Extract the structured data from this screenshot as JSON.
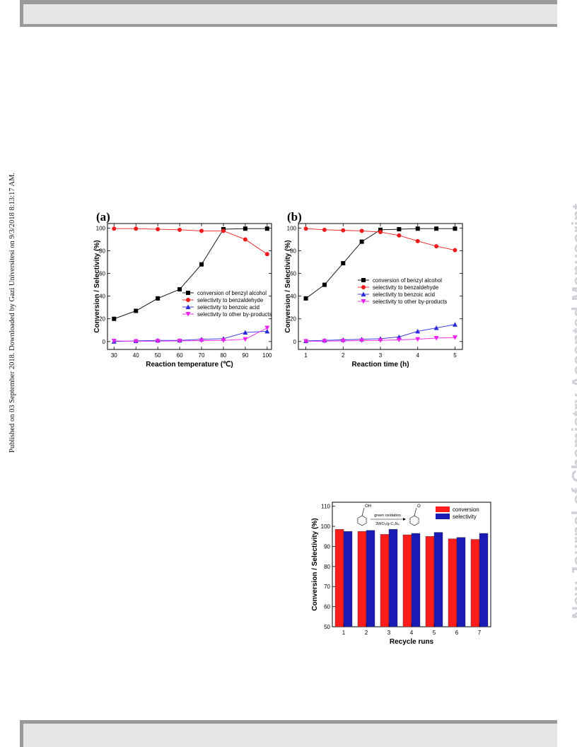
{
  "side_text": {
    "published": "Published on 03 September 2018. Downloaded by Gazi Universitesi on 9/3/2018 8:13:17 AM.",
    "journal": "New Journal of Chemistry Accepted Manuscript"
  },
  "chart_data": [
    {
      "type": "line",
      "panel_label": "(a)",
      "xlabel": "Reaction temperature (℃)",
      "ylabel": "Conversion / Selectivity (%)",
      "x": [
        30,
        40,
        50,
        60,
        70,
        80,
        90,
        100
      ],
      "xticks": [
        "30",
        "40",
        "50",
        "60",
        "70",
        "80",
        "90",
        "100"
      ],
      "yticks": [
        "0",
        "20",
        "40",
        "60",
        "80",
        "100"
      ],
      "xlim": [
        27,
        102
      ],
      "ylim": [
        -7,
        104
      ],
      "grid": false,
      "legend_position": "lower-right",
      "series": [
        {
          "name": "conversion of benzyl alcohol",
          "color": "#000000",
          "marker": "square",
          "values": [
            20,
            27,
            38,
            46,
            68,
            99,
            99.5,
            99.5
          ]
        },
        {
          "name": "selectivity to benzaldehyde",
          "color": "#ee1c1c",
          "marker": "circle",
          "values": [
            99.5,
            99.5,
            99,
            98.5,
            97.5,
            97.5,
            90,
            77
          ]
        },
        {
          "name": "selectivity to benzoic acid",
          "color": "#2a2ad8",
          "marker": "triangle-up",
          "values": [
            0,
            0.5,
            1,
            1,
            2,
            2.5,
            8,
            9
          ]
        },
        {
          "name": "selectivity to other by-products",
          "color": "#ee20ee",
          "marker": "triangle-down",
          "values": [
            0.5,
            0.2,
            0.3,
            0.5,
            0.8,
            1,
            2,
            12
          ]
        }
      ]
    },
    {
      "type": "line",
      "panel_label": "(b)",
      "xlabel": "Reaction time (h)",
      "ylabel": "Conversion / Selectivity (%)",
      "x": [
        1,
        1.5,
        2,
        2.5,
        3,
        3.5,
        4,
        4.5,
        5
      ],
      "xticks": [
        "1",
        "2",
        "3",
        "4",
        "5"
      ],
      "yticks": [
        "0",
        "20",
        "40",
        "60",
        "80",
        "100"
      ],
      "xlim": [
        0.8,
        5.2
      ],
      "ylim": [
        -7,
        104
      ],
      "grid": false,
      "legend_position": "center-right",
      "series": [
        {
          "name": "conversion of benzyl alcohol",
          "color": "#000000",
          "marker": "square",
          "values": [
            38,
            50,
            69,
            88,
            98.5,
            99,
            99.5,
            99.5,
            99.5
          ]
        },
        {
          "name": "selectivity to benzaldehyde",
          "color": "#ee1c1c",
          "marker": "circle",
          "values": [
            99.5,
            98.5,
            98,
            97.5,
            96.5,
            93.5,
            88.5,
            84,
            80.5
          ]
        },
        {
          "name": "selectivity to benzoic acid",
          "color": "#2a2ad8",
          "marker": "triangle-up",
          "values": [
            0.5,
            1,
            1.5,
            2,
            2.5,
            4,
            9,
            12,
            15
          ]
        },
        {
          "name": "selectivity to other by-products",
          "color": "#ee20ee",
          "marker": "triangle-down",
          "values": [
            0.2,
            0.3,
            0.5,
            0.8,
            1,
            1.5,
            2,
            3,
            3.5
          ]
        }
      ]
    },
    {
      "type": "bar",
      "xlabel": "Recycle runs",
      "ylabel": "Conversion / Selectivity (%)",
      "categories": [
        "1",
        "2",
        "3",
        "4",
        "5",
        "6",
        "7"
      ],
      "yticks": [
        "50",
        "60",
        "70",
        "80",
        "90",
        "100",
        "110"
      ],
      "ylim": [
        50,
        112
      ],
      "grid": false,
      "legend_position": "top-right",
      "inset_text": {
        "reagent_top": "green oxidation",
        "reagent_bottom": "3WO₃/g-C₃N₄",
        "oh": "OH",
        "o": "O"
      },
      "series": [
        {
          "name": "conversion",
          "color": "#ff1c1c",
          "values": [
            98.5,
            97.5,
            96,
            95.8,
            95,
            93.8,
            93.5
          ]
        },
        {
          "name": "selectivity",
          "color": "#1a1ab5",
          "values": [
            97.5,
            98,
            98.5,
            96.5,
            97,
            94.5,
            96.5
          ]
        }
      ]
    }
  ]
}
